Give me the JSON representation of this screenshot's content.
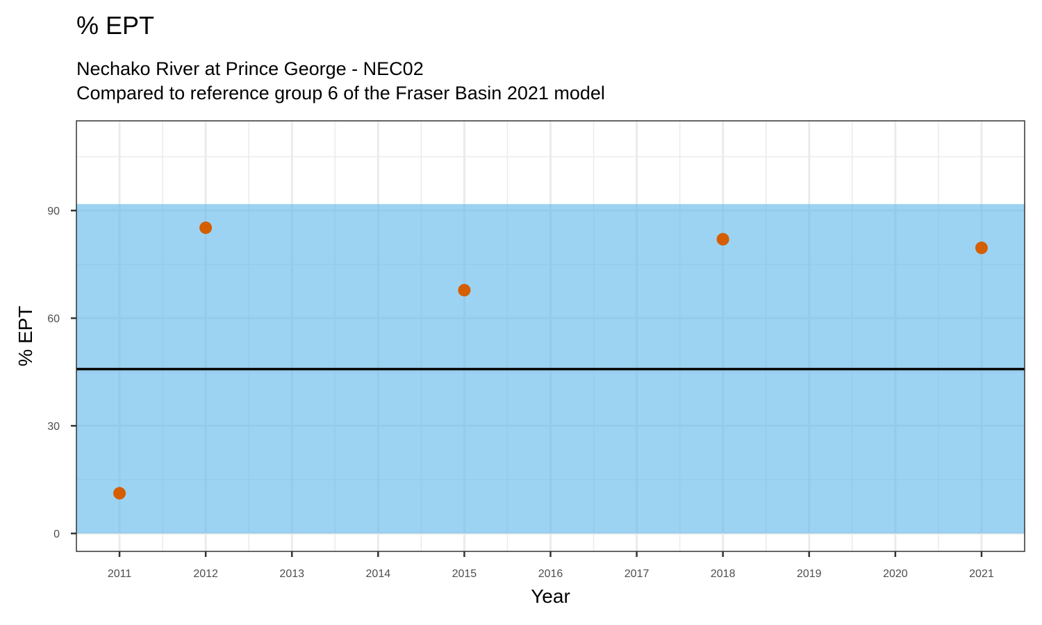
{
  "chart_data": {
    "type": "scatter",
    "title": "% EPT",
    "subtitle_lines": [
      "Nechako River at Prince George - NEC02",
      "Compared to reference group 6 of the Fraser Basin 2021 model"
    ],
    "xlabel": "Year",
    "ylabel": "% EPT",
    "x_ticks": [
      2011,
      2012,
      2013,
      2014,
      2015,
      2016,
      2017,
      2018,
      2019,
      2020,
      2021
    ],
    "y_ticks": [
      0,
      30,
      60,
      90
    ],
    "xlim": [
      2010.5,
      2021.5
    ],
    "ylim": [
      -5,
      115
    ],
    "points": [
      {
        "x": 2011,
        "y": 11.2
      },
      {
        "x": 2012,
        "y": 85.2
      },
      {
        "x": 2015,
        "y": 67.8
      },
      {
        "x": 2018,
        "y": 82.0
      },
      {
        "x": 2021,
        "y": 79.6
      }
    ],
    "reference_band": {
      "ymin": 0,
      "ymax": 91.8
    },
    "reference_line": 45.8,
    "grid": true,
    "colors": {
      "points": "#D55E00",
      "band": "#56B4E9",
      "reference_line": "#000000",
      "grid": "#ebebeb",
      "panel_border": "#333333"
    }
  }
}
